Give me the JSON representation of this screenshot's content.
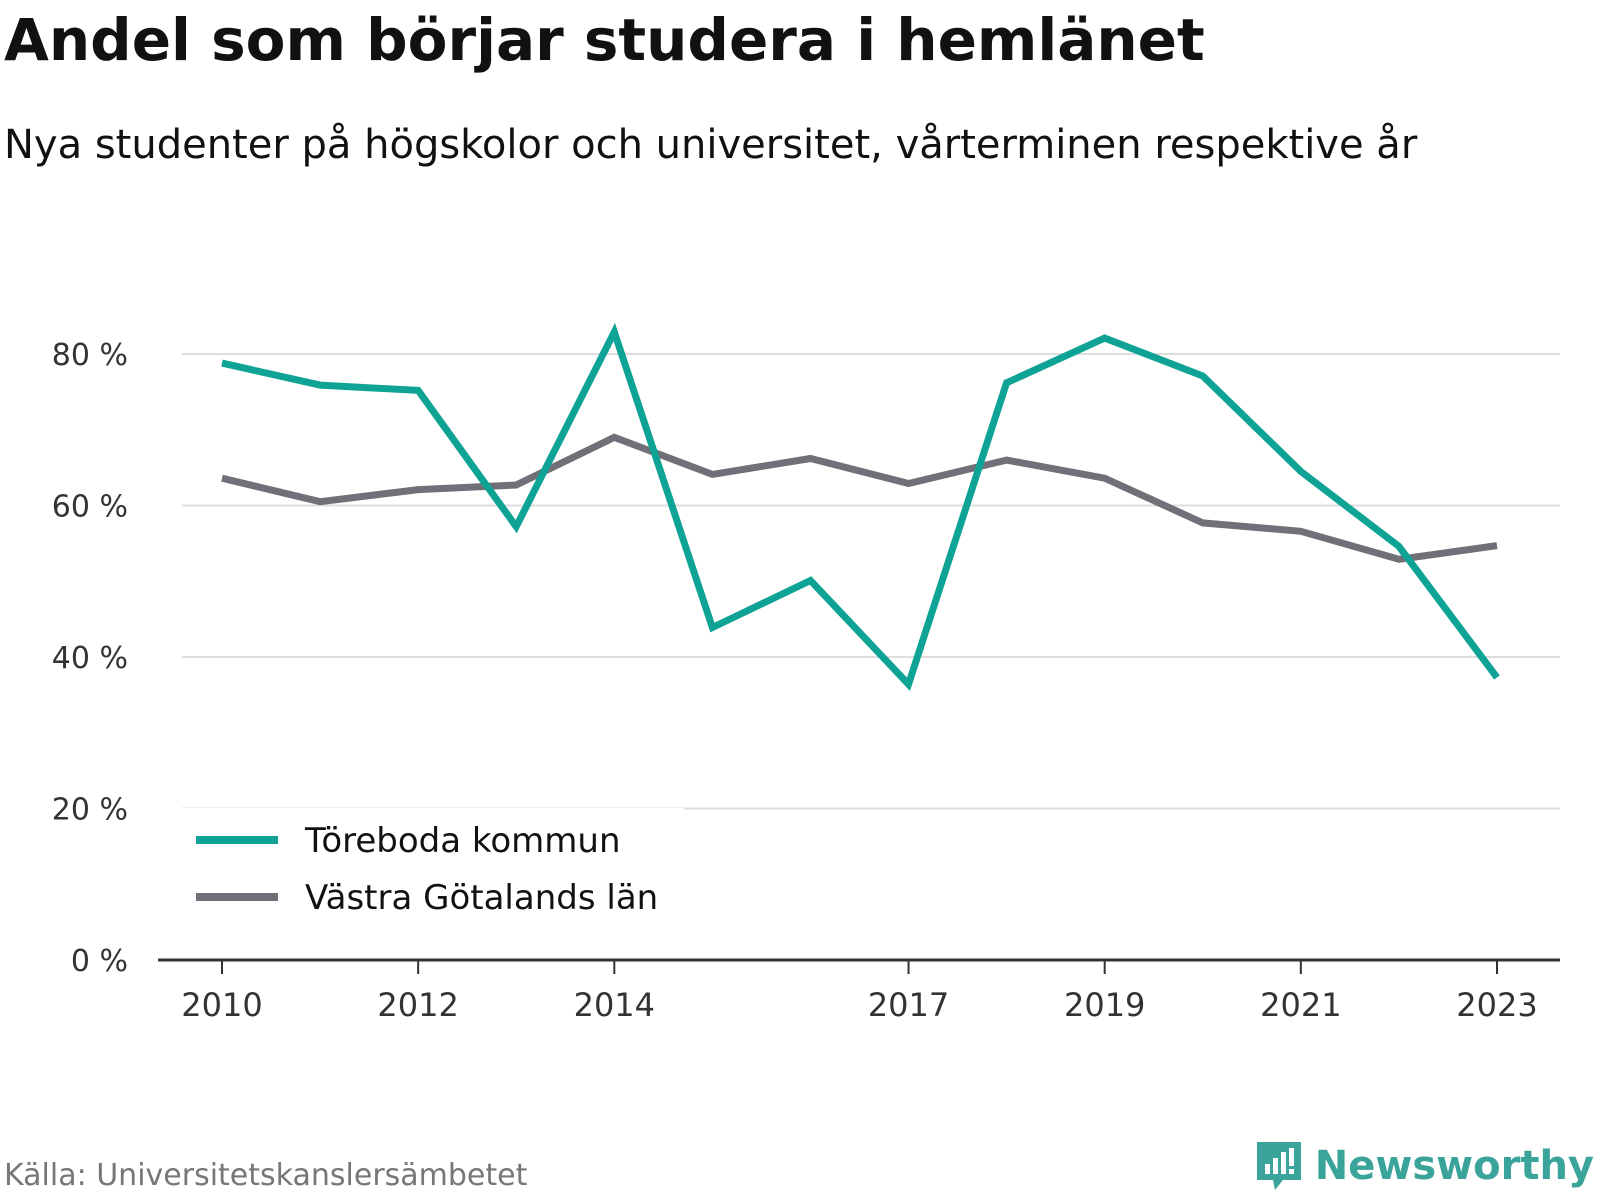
{
  "header": {
    "title": "Andel som börjar studera i hemlänet",
    "subtitle": "Nya studenter på högskolor och universitet, vårterminen respektive år"
  },
  "footer": {
    "source": "Källa: Universitetskanslersämbetet",
    "brand": "Newsworthy",
    "brand_icon": "bar-chart-speech-bubble-icon",
    "brand_color": "#3aa39a"
  },
  "chart_data": {
    "type": "line",
    "x": [
      2010,
      2011,
      2012,
      2013,
      2014,
      2015,
      2016,
      2017,
      2018,
      2019,
      2020,
      2021,
      2022,
      2023
    ],
    "x_tick_values": [
      2010,
      2012,
      2014,
      2017,
      2019,
      2021,
      2023
    ],
    "x_tick_labels": [
      "2010",
      "2012",
      "2014",
      "2017",
      "2019",
      "2021",
      "2023"
    ],
    "y_ticks": [
      0,
      20,
      40,
      60,
      80
    ],
    "y_tick_labels": [
      "0 %",
      "20 %",
      "40 %",
      "60 %",
      "80 %"
    ],
    "ylim": [
      0,
      80
    ],
    "grid": true,
    "legend_position": "bottom-left",
    "series": [
      {
        "name": "Töreboda kommun",
        "color": "#0fa396",
        "values": [
          78.8,
          75.9,
          75.2,
          57.2,
          82.9,
          43.9,
          50.1,
          36.4,
          76.2,
          82.1,
          77.1,
          64.5,
          54.6,
          37.3
        ]
      },
      {
        "name": "Västra Götalands län",
        "color": "#717078",
        "values": [
          63.6,
          60.5,
          62.1,
          62.7,
          69.0,
          64.1,
          66.2,
          62.9,
          66.0,
          63.6,
          57.7,
          56.6,
          52.9,
          54.7
        ]
      }
    ]
  }
}
